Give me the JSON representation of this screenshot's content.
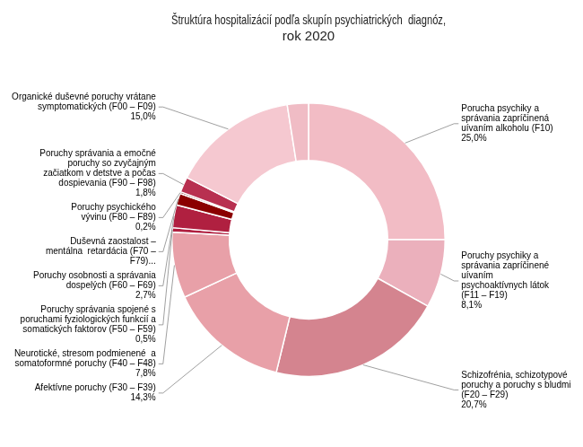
{
  "chart_data": {
    "type": "doughnut",
    "title": "Štruktúra hospitalizácií podľa skupín psychiatrických  diagnóz,\nrok 2020",
    "categories": [
      "Porucha psychiky a\nsprávania zapríčinená\nuívaním alkoholu (F10)\n25,0%",
      "Poruchy psychiky a\nsprávania zapríčinené\nuívaním\npsychoaktívnych látok\n(F11 – F19)\n8,1%",
      "Schizofrénia, schizotypové\nporuchy a poruchy s bludmi\n(F20 – F29)\n20,7%",
      "Afektívne poruchy (F30 – F39)\n14,3%",
      "Neurotické, stresom podmienené  a\nsomatoformné poruchy (F40 – F48)\n7,8%",
      "Poruchy správania spojené s\nporuchami fyziologických funkcií a\nsomatických faktorov (F50 – F59)\n0,5%",
      "Poruchy osobnosti a správania\ndospelých (F60 – F69)\n2,7%",
      "Duševná zaostalost –\nmentálna  retardácia (F70 –\nF79)...",
      "Poruchy psychického\nvývinu (F80 – F89)\n0,2%",
      "Poruchy správania a emočné\nporuchy so zvyčajným\nzačiatkom v detstve a počas\ndospievania (F90 – F98)\n1,8%",
      "Organické duševné poruchy vrátane\nsymptomatických (F00 – F09)\n15,0%",
      null
    ],
    "values": [
      25.0,
      8.1,
      20.7,
      14.3,
      7.8,
      0.5,
      2.7,
      1.4,
      0.2,
      1.8,
      15.0,
      2.5
    ],
    "colors": [
      "#f2bcc5",
      "#ebb0bc",
      "#d4848f",
      "#e8a0a8",
      "#e8a0a8",
      "#b02040",
      "#b02040",
      "#8b0000",
      "#6b0000",
      "#b83050",
      "#f5c8d0",
      "#f0bcc5"
    ]
  }
}
